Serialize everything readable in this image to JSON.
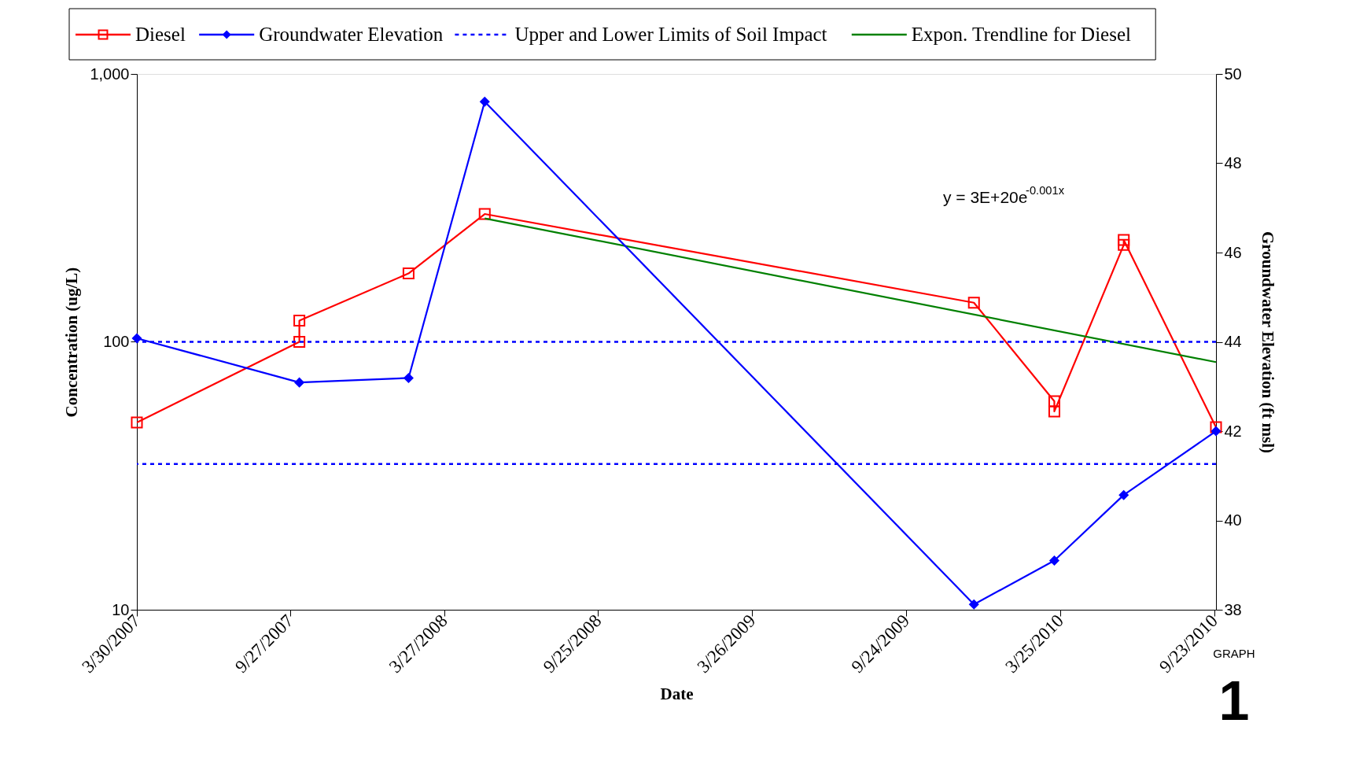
{
  "chart_data": {
    "type": "line",
    "xlabel": "Date",
    "ylabel": "Concentration (ug/L)",
    "y2label": "Groundwater Elevation (ft msl)",
    "xlim": [
      "2007-03-30",
      "2010-09-25"
    ],
    "xticks": [
      {
        "value": "2007-03-30",
        "label": "3/30/2007"
      },
      {
        "value": "2007-09-27",
        "label": "9/27/2007"
      },
      {
        "value": "2008-03-27",
        "label": "3/27/2008"
      },
      {
        "value": "2008-09-25",
        "label": "9/25/2008"
      },
      {
        "value": "2009-03-26",
        "label": "3/26/2009"
      },
      {
        "value": "2009-09-24",
        "label": "9/24/2009"
      },
      {
        "value": "2010-03-25",
        "label": "3/25/2010"
      },
      {
        "value": "2010-09-23",
        "label": "9/23/2010"
      }
    ],
    "log": "y",
    "ylim": [
      10,
      1000
    ],
    "yticks": [
      10,
      100,
      {
        "value": 1000,
        "label": "1,000"
      }
    ],
    "y2lim": [
      38,
      50
    ],
    "y2ticks": [
      38,
      40,
      42,
      44,
      46,
      48,
      50
    ],
    "grid": false,
    "legend": "top",
    "series": [
      {
        "name": "Diesel",
        "color": "#ff0000",
        "marker": "square",
        "x": [
          "2007-03-30",
          "2007-10-08",
          "2007-10-08",
          "2008-02-14",
          "2008-05-14",
          "2009-12-13",
          "2010-03-18",
          "2010-03-18",
          "2010-06-08",
          "2010-06-08",
          "2010-09-25"
        ],
        "values": [
          50,
          100,
          120,
          180,
          300,
          140,
          60,
          55,
          230,
          240,
          48
        ]
      },
      {
        "name": "Groundwater Elevation",
        "color": "#0000ff",
        "marker": "diamond",
        "axis": "y2",
        "x": [
          "2007-03-30",
          "2007-10-08",
          "2008-02-14",
          "2008-05-14",
          "2009-12-13",
          "2010-03-18",
          "2010-06-08",
          "2010-09-25"
        ],
        "values": [
          44.08,
          43.09,
          43.19,
          49.38,
          38.12,
          39.1,
          40.57,
          42.0
        ]
      },
      {
        "name": "Expon. Trendline for Diesel",
        "color": "#008000",
        "type": "line",
        "marker": "none",
        "x": [
          "2008-05-14",
          "2010-09-25"
        ],
        "values": [
          289,
          84
        ]
      }
    ],
    "ref_lines": [
      {
        "axis": "y",
        "value": 100,
        "label": "Upper and Lower Limits of Soil Impact",
        "color": "#0000ff",
        "line_style": "dashed"
      },
      {
        "axis": "y",
        "value": 35,
        "label": null,
        "color": "#0000ff",
        "line_style": "dashed"
      }
    ],
    "annotations": [
      "y = 3E+20e$^{-0.001x}$",
      "GRAPH",
      "1"
    ]
  }
}
